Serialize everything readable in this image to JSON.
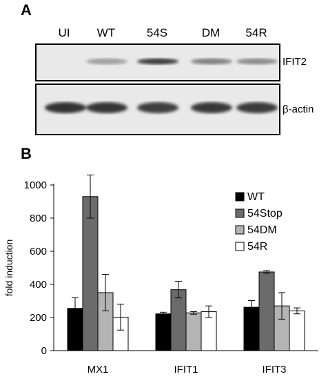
{
  "panel_a": {
    "letter": "A",
    "lanes": [
      "UI",
      "WT",
      "54S",
      "DM",
      "54R"
    ],
    "blots": [
      {
        "label": "IFIT2",
        "band_intensity": [
          0.0,
          0.35,
          0.85,
          0.5,
          0.45
        ]
      },
      {
        "label": "β-actin",
        "band_intensity": [
          0.9,
          0.88,
          0.85,
          0.87,
          0.86
        ]
      }
    ]
  },
  "panel_b": {
    "letter": "B"
  },
  "chart_data": {
    "type": "bar",
    "categories": [
      "MX1",
      "IFIT1",
      "IFIT3"
    ],
    "series": [
      {
        "name": "WT",
        "color": "#000000",
        "values": [
          255,
          222,
          262
        ],
        "errors": [
          65,
          10,
          40
        ]
      },
      {
        "name": "54Stop",
        "color": "#6b6b6b",
        "values": [
          930,
          368,
          475
        ],
        "errors": [
          130,
          50,
          8
        ]
      },
      {
        "name": "54DM",
        "color": "#b4b4b4",
        "values": [
          350,
          228,
          270
        ],
        "errors": [
          110,
          8,
          80
        ]
      },
      {
        "name": "54R",
        "color": "#ffffff",
        "values": [
          202,
          235,
          240
        ],
        "errors": [
          78,
          35,
          18
        ]
      }
    ],
    "ylabel": "fold induction",
    "xlabel": "",
    "ylim": [
      0,
      1000
    ],
    "yticks": [
      0,
      200,
      400,
      600,
      800,
      1000
    ],
    "legend_position": "top-right",
    "grid": false
  }
}
